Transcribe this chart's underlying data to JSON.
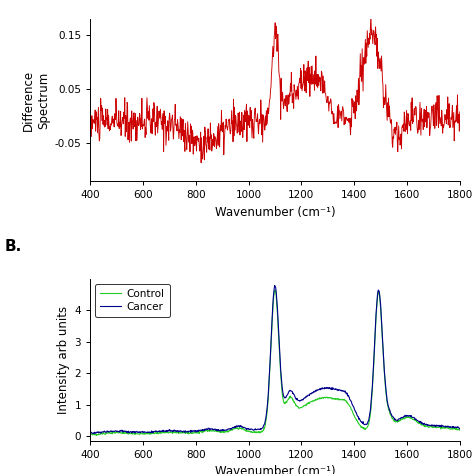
{
  "xrange": [
    400,
    1800
  ],
  "plot_A": {
    "ylabel": "Difference\nSpectrum",
    "xlabel": "Wavenumber (cm⁻¹)",
    "ylim": [
      -0.12,
      0.18
    ],
    "yticks": [
      -0.05,
      0.05,
      0.15
    ],
    "xticks": [
      400,
      600,
      800,
      1000,
      1200,
      1400,
      1600,
      1800
    ],
    "line_color": "#cc0000"
  },
  "plot_B": {
    "ylabel": "Intensity arb units",
    "xlabel": "Wavenumber (cm⁻¹)",
    "ylim": [
      -0.15,
      5.0
    ],
    "yticks": [
      0,
      1,
      2,
      3,
      4
    ],
    "xticks": [
      400,
      600,
      800,
      1000,
      1200,
      1400,
      1600,
      1800
    ],
    "control_color": "#22cc22",
    "cancer_color": "#00008B",
    "label_B": "B.",
    "legend_entries": [
      "Control",
      "Cancer"
    ]
  }
}
